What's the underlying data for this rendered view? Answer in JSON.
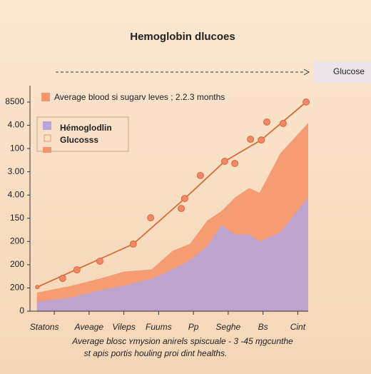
{
  "callout": "Glucose",
  "chart_data": {
    "type": "area",
    "title": "Hemoglobin dlucoes",
    "caption": [
      "Average blosc ʏmysion anirels spiscuale - 3 -45 ɱgcunthe",
      "st apis portis houling proi dint healths."
    ],
    "x": [
      0.5,
      1.5,
      2.3,
      3,
      3.8,
      4.4,
      4.9,
      5.4,
      5.8,
      6.2,
      6.6,
      6.9,
      7.5,
      8.3
    ],
    "xlim": [
      0.3,
      8.3
    ],
    "xticks": [
      {
        "value": 1,
        "label": "Statons"
      },
      {
        "value": 2,
        "label": "Aveage"
      },
      {
        "value": 3,
        "label": "Vileps"
      },
      {
        "value": 4,
        "label": "Fuums"
      },
      {
        "value": 5,
        "label": "Pp"
      },
      {
        "value": 6,
        "label": "Seghe"
      },
      {
        "value": 7,
        "label": "Bs"
      },
      {
        "value": 8,
        "label": "Cint"
      }
    ],
    "ylim": [
      0,
      9
    ],
    "yticks": [
      0,
      {
        "value": 1,
        "label": "200"
      },
      {
        "value": 2,
        "label": "200"
      },
      {
        "value": 3,
        "label": "200"
      },
      {
        "value": 4,
        "label": "150"
      },
      {
        "value": 5,
        "label": "4.00"
      },
      {
        "value": 6,
        "label": "3.00"
      },
      {
        "value": 7,
        "label": "100"
      },
      {
        "value": 8,
        "label": "4.00"
      },
      {
        "value": 9,
        "label": "8500"
      }
    ],
    "grid": false,
    "series": [
      {
        "name": "Average blood si sugarv leves ; 2.2.3 months",
        "type": "area",
        "color": "#f4956a",
        "values": [
          0.8,
          1.1,
          1.4,
          1.7,
          1.8,
          2.6,
          2.9,
          3.9,
          4.3,
          4.9,
          5.3,
          5.1,
          6.8,
          8.1
        ]
      },
      {
        "name": "Hémoglodlin",
        "type": "area",
        "color": "#b8a4d8",
        "values": [
          0.4,
          0.6,
          0.9,
          1.1,
          1.4,
          1.8,
          2.2,
          2.8,
          3.7,
          3.3,
          3.3,
          3.0,
          3.4,
          4.9
        ]
      },
      {
        "name": "Glucosss",
        "type": "line",
        "color": "#d66d35",
        "x": [
          0.51,
          3.27,
          4.75,
          5.9,
          6.95,
          8.24
        ],
        "values": [
          1.04,
          2.89,
          4.85,
          6.45,
          7.37,
          9.0
        ]
      },
      {
        "type": "scatter",
        "color": "#f0866a",
        "x": [
          0.51,
          1.24,
          1.65,
          2.31,
          3.27,
          3.77,
          4.65,
          4.75,
          5.2,
          5.9,
          6.19,
          6.64,
          6.95,
          7.11,
          7.58,
          8.24
        ],
        "values": [
          1.04,
          1.41,
          1.78,
          2.15,
          2.89,
          4.02,
          4.42,
          4.85,
          5.84,
          6.45,
          6.36,
          7.4,
          7.37,
          8.14,
          8.08,
          9.0
        ]
      }
    ]
  }
}
